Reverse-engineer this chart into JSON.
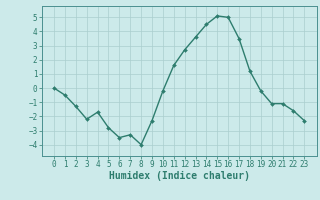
{
  "x": [
    0,
    1,
    2,
    3,
    4,
    5,
    6,
    7,
    8,
    9,
    10,
    11,
    12,
    13,
    14,
    15,
    16,
    17,
    18,
    19,
    20,
    21,
    22,
    23
  ],
  "y": [
    0.0,
    -0.5,
    -1.3,
    -2.2,
    -1.7,
    -2.8,
    -3.5,
    -3.3,
    -4.0,
    -2.3,
    -0.2,
    1.6,
    2.7,
    3.6,
    4.5,
    5.1,
    5.0,
    3.5,
    1.2,
    -0.2,
    -1.1,
    -1.1,
    -1.6,
    -2.3
  ],
  "line_color": "#2e7d6e",
  "marker": "D",
  "marker_size": 2.0,
  "line_width": 1.0,
  "background_color": "#cceaea",
  "grid_color": "#aacece",
  "xlabel": "Humidex (Indice chaleur)",
  "xlabel_fontsize": 7,
  "xlabel_fontweight": "bold",
  "ylim": [
    -4.8,
    5.8
  ],
  "yticks": [
    -4,
    -3,
    -2,
    -1,
    0,
    1,
    2,
    3,
    4,
    5
  ],
  "xticks": [
    0,
    1,
    2,
    3,
    4,
    5,
    6,
    7,
    8,
    9,
    10,
    11,
    12,
    13,
    14,
    15,
    16,
    17,
    18,
    19,
    20,
    21,
    22,
    23
  ],
  "tick_fontsize": 5.5,
  "tick_color": "#2e7d6e",
  "axis_color": "#2e7d6e",
  "spine_color": "#4a9090"
}
